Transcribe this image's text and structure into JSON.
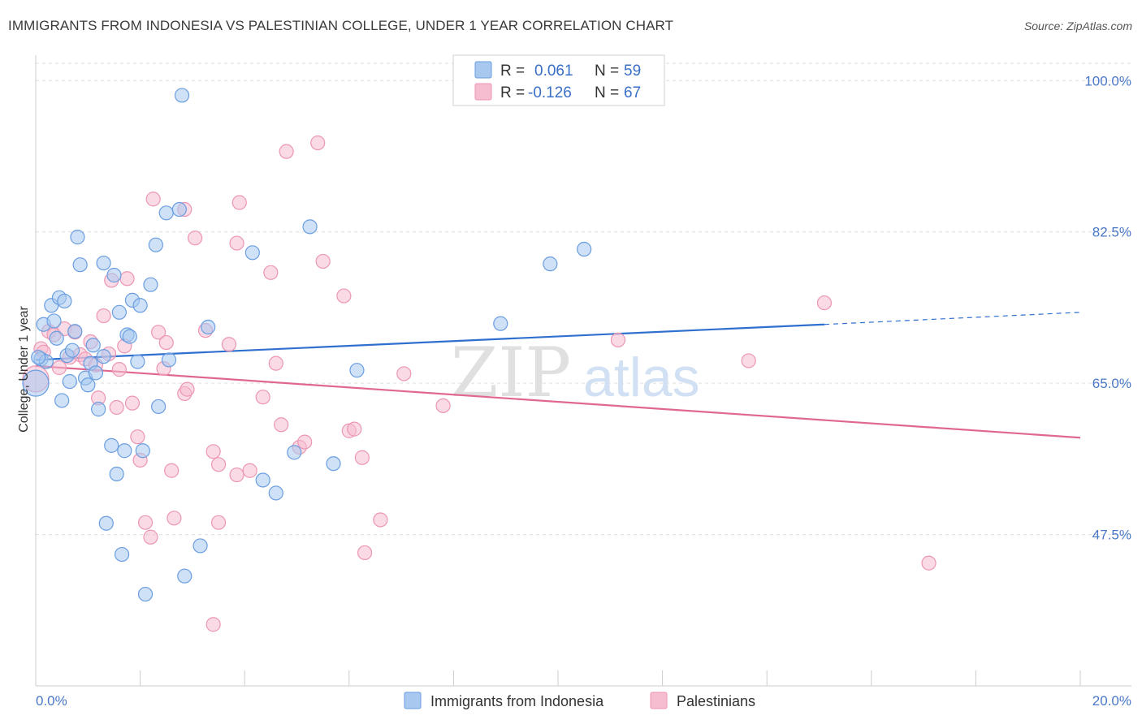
{
  "title": "IMMIGRANTS FROM INDONESIA VS PALESTINIAN COLLEGE, UNDER 1 YEAR CORRELATION CHART",
  "source": "Source: ZipAtlas.com",
  "watermark": {
    "zip": "ZIP",
    "atlas": "atlas"
  },
  "colors": {
    "blue_fill": "#a8c8f0",
    "blue_stroke": "#6a9ee0",
    "blue_line": "#2f6fce",
    "pink_fill": "#f6bcd0",
    "pink_stroke": "#ec96b4",
    "pink_line": "#e06890",
    "grid": "#dddddd",
    "axis_text": "#4a78c8"
  },
  "legend": {
    "r_label": "R =",
    "n_label": "N =",
    "rows": [
      {
        "r": "0.061",
        "n": "59"
      },
      {
        "r": "-0.126",
        "n": "67"
      }
    ]
  },
  "chart_data": {
    "type": "scatter",
    "title": "IMMIGRANTS FROM INDONESIA VS PALESTINIAN COLLEGE, UNDER 1 YEAR CORRELATION CHART",
    "xlabel": "",
    "ylabel": "College, Under 1 year",
    "xlim": [
      0,
      20
    ],
    "ylim": [
      30,
      102
    ],
    "x_ticks": [
      "0.0%",
      "20.0%"
    ],
    "y_ticks": [
      {
        "value": 100,
        "label": "100.0%"
      },
      {
        "value": 82.5,
        "label": "82.5%"
      },
      {
        "value": 65,
        "label": "65.0%"
      },
      {
        "value": 47.5,
        "label": "47.5%"
      }
    ],
    "series": [
      {
        "name": "Immigrants from Indonesia",
        "r": 0.061,
        "n": 59,
        "trend": {
          "x0": 0,
          "y0": 67.7,
          "x1": 15.1,
          "y1": 71.8,
          "dash_to_x": 20,
          "dash_to_y": 73.2
        },
        "points": [
          [
            0.0,
            65.0
          ],
          [
            0.1,
            67.8
          ],
          [
            0.15,
            71.8
          ],
          [
            0.2,
            67.5
          ],
          [
            0.3,
            74.0
          ],
          [
            0.35,
            72.2
          ],
          [
            0.4,
            70.2
          ],
          [
            0.45,
            74.9
          ],
          [
            0.5,
            63.0
          ],
          [
            0.55,
            74.5
          ],
          [
            0.6,
            68.2
          ],
          [
            0.65,
            65.2
          ],
          [
            0.7,
            68.8
          ],
          [
            0.75,
            71.0
          ],
          [
            0.8,
            81.9
          ],
          [
            0.85,
            78.7
          ],
          [
            0.95,
            65.6
          ],
          [
            1.0,
            64.8
          ],
          [
            1.05,
            67.3
          ],
          [
            1.1,
            69.4
          ],
          [
            1.15,
            66.2
          ],
          [
            1.2,
            62.0
          ],
          [
            1.3,
            68.1
          ],
          [
            1.3,
            78.9
          ],
          [
            1.35,
            48.8
          ],
          [
            1.45,
            57.8
          ],
          [
            1.5,
            77.5
          ],
          [
            1.55,
            54.5
          ],
          [
            1.6,
            73.2
          ],
          [
            1.65,
            45.2
          ],
          [
            1.7,
            57.2
          ],
          [
            1.75,
            70.6
          ],
          [
            1.8,
            70.4
          ],
          [
            1.85,
            74.6
          ],
          [
            1.95,
            67.5
          ],
          [
            2.0,
            74.0
          ],
          [
            2.05,
            57.2
          ],
          [
            2.1,
            40.6
          ],
          [
            2.2,
            76.4
          ],
          [
            2.3,
            81.0
          ],
          [
            2.35,
            62.3
          ],
          [
            2.5,
            84.7
          ],
          [
            2.55,
            67.7
          ],
          [
            2.75,
            85.1
          ],
          [
            2.8,
            98.3
          ],
          [
            2.85,
            42.7
          ],
          [
            3.15,
            46.2
          ],
          [
            3.3,
            71.5
          ],
          [
            4.15,
            80.1
          ],
          [
            4.35,
            53.8
          ],
          [
            4.6,
            52.3
          ],
          [
            4.95,
            57.0
          ],
          [
            5.25,
            83.1
          ],
          [
            5.7,
            55.7
          ],
          [
            6.15,
            66.5
          ],
          [
            8.9,
            71.9
          ],
          [
            9.85,
            78.8
          ],
          [
            10.5,
            80.5
          ],
          [
            0.05,
            68.0
          ]
        ]
      },
      {
        "name": "Palestinians",
        "r": -0.126,
        "n": 67,
        "trend": {
          "x0": 0,
          "y0": 67.0,
          "x1": 20,
          "y1": 58.7
        },
        "points": [
          [
            0.0,
            65.5
          ],
          [
            0.1,
            69.0
          ],
          [
            0.15,
            68.6
          ],
          [
            0.25,
            71.0
          ],
          [
            0.35,
            70.6
          ],
          [
            0.45,
            66.8
          ],
          [
            0.55,
            71.3
          ],
          [
            0.65,
            68.0
          ],
          [
            0.75,
            70.9
          ],
          [
            0.85,
            68.3
          ],
          [
            0.95,
            67.8
          ],
          [
            1.05,
            69.8
          ],
          [
            1.15,
            67.1
          ],
          [
            1.2,
            63.3
          ],
          [
            1.3,
            72.8
          ],
          [
            1.4,
            68.4
          ],
          [
            1.45,
            76.9
          ],
          [
            1.55,
            62.2
          ],
          [
            1.6,
            66.6
          ],
          [
            1.7,
            69.3
          ],
          [
            1.75,
            77.1
          ],
          [
            1.85,
            62.7
          ],
          [
            1.95,
            58.8
          ],
          [
            2.0,
            56.1
          ],
          [
            2.1,
            48.9
          ],
          [
            2.2,
            47.2
          ],
          [
            2.25,
            86.3
          ],
          [
            2.35,
            70.9
          ],
          [
            2.45,
            66.7
          ],
          [
            2.5,
            69.7
          ],
          [
            2.6,
            54.9
          ],
          [
            2.65,
            49.4
          ],
          [
            2.85,
            85.1
          ],
          [
            2.85,
            63.8
          ],
          [
            2.9,
            64.3
          ],
          [
            3.05,
            81.8
          ],
          [
            3.25,
            71.1
          ],
          [
            3.4,
            37.1
          ],
          [
            3.4,
            57.1
          ],
          [
            3.5,
            48.9
          ],
          [
            3.5,
            55.6
          ],
          [
            3.7,
            69.5
          ],
          [
            3.85,
            54.4
          ],
          [
            3.85,
            81.2
          ],
          [
            3.9,
            85.9
          ],
          [
            4.1,
            54.9
          ],
          [
            4.35,
            63.4
          ],
          [
            4.5,
            77.8
          ],
          [
            4.6,
            67.3
          ],
          [
            4.7,
            60.2
          ],
          [
            4.8,
            91.8
          ],
          [
            5.05,
            57.6
          ],
          [
            5.15,
            58.2
          ],
          [
            5.4,
            92.8
          ],
          [
            5.5,
            79.1
          ],
          [
            5.9,
            75.1
          ],
          [
            6.0,
            59.5
          ],
          [
            6.1,
            59.7
          ],
          [
            6.25,
            56.4
          ],
          [
            6.3,
            45.4
          ],
          [
            6.6,
            49.2
          ],
          [
            7.05,
            66.1
          ],
          [
            7.8,
            62.4
          ],
          [
            11.15,
            70.0
          ],
          [
            13.65,
            67.6
          ],
          [
            15.1,
            74.3
          ],
          [
            17.1,
            44.2
          ]
        ]
      }
    ]
  }
}
